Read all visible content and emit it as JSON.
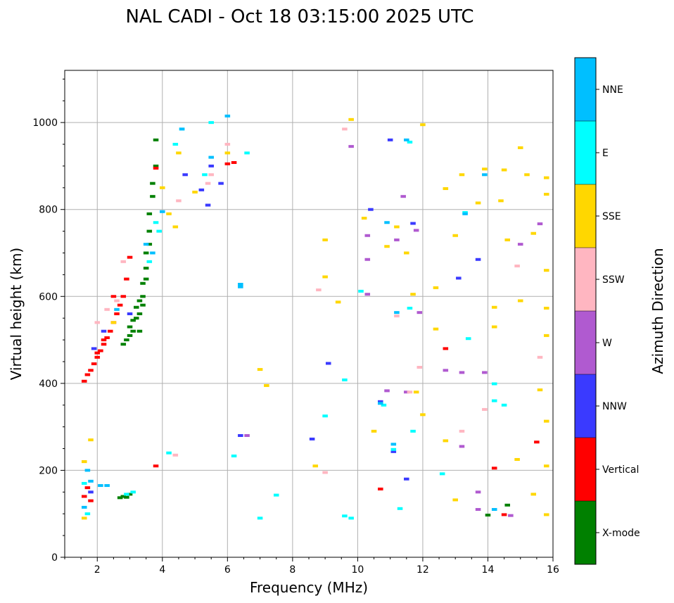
{
  "chart_data": {
    "type": "scatter",
    "title": "NAL CADI - Oct 18 03:15:00 2025 UTC",
    "xlabel": "Frequency (MHz)",
    "ylabel": "Virtual height (km)",
    "xlim": [
      1,
      16
    ],
    "ylim": [
      0,
      1120
    ],
    "xticks": [
      2,
      4,
      6,
      8,
      10,
      12,
      14,
      16
    ],
    "yticks": [
      0,
      200,
      400,
      600,
      800,
      1000
    ],
    "grid": true,
    "colorbar": {
      "label": "Azimuth Direction",
      "categories": [
        {
          "name": "X-mode",
          "color": "#008000"
        },
        {
          "name": "Vertical",
          "color": "#ff0000"
        },
        {
          "name": "NNW",
          "color": "#3a3aff"
        },
        {
          "name": "W",
          "color": "#b05ad0"
        },
        {
          "name": "SSW",
          "color": "#ffb6c1"
        },
        {
          "name": "SSE",
          "color": "#ffd700"
        },
        {
          "name": "E",
          "color": "#00ffff"
        },
        {
          "name": "NNE",
          "color": "#00bfff"
        }
      ]
    },
    "series": [
      {
        "name": "X-mode",
        "points": [
          [
            2.8,
            490
          ],
          [
            2.9,
            500
          ],
          [
            3.0,
            510
          ],
          [
            3.0,
            530
          ],
          [
            3.1,
            520
          ],
          [
            3.1,
            545
          ],
          [
            3.2,
            550
          ],
          [
            3.2,
            575
          ],
          [
            3.3,
            560
          ],
          [
            3.3,
            590
          ],
          [
            3.4,
            600
          ],
          [
            3.4,
            630
          ],
          [
            3.5,
            640
          ],
          [
            3.5,
            665
          ],
          [
            3.5,
            700
          ],
          [
            3.6,
            720
          ],
          [
            3.6,
            750
          ],
          [
            3.6,
            790
          ],
          [
            3.7,
            830
          ],
          [
            3.7,
            860
          ],
          [
            3.8,
            900
          ],
          [
            3.8,
            960
          ],
          [
            2.7,
            137
          ],
          [
            2.8,
            140
          ],
          [
            2.9,
            138
          ],
          [
            3.0,
            145
          ],
          [
            14.0,
            97
          ],
          [
            14.6,
            120
          ],
          [
            3.3,
            520
          ],
          [
            3.4,
            580
          ]
        ]
      },
      {
        "name": "Vertical",
        "points": [
          [
            1.6,
            405
          ],
          [
            1.7,
            420
          ],
          [
            1.8,
            430
          ],
          [
            1.9,
            445
          ],
          [
            2.0,
            460
          ],
          [
            2.1,
            475
          ],
          [
            2.2,
            490
          ],
          [
            2.3,
            505
          ],
          [
            2.4,
            520
          ],
          [
            2.5,
            540
          ],
          [
            2.6,
            560
          ],
          [
            2.7,
            580
          ],
          [
            2.8,
            600
          ],
          [
            2.9,
            640
          ],
          [
            3.0,
            690
          ],
          [
            1.6,
            140
          ],
          [
            1.7,
            160
          ],
          [
            1.8,
            130
          ],
          [
            2.0,
            470
          ],
          [
            2.2,
            500
          ],
          [
            3.8,
            210
          ],
          [
            3.8,
            895
          ],
          [
            6.0,
            905
          ],
          [
            6.2,
            908
          ],
          [
            12.7,
            480
          ],
          [
            14.2,
            205
          ],
          [
            14.5,
            98
          ],
          [
            10.7,
            157
          ],
          [
            15.5,
            265
          ],
          [
            2.5,
            600
          ]
        ]
      },
      {
        "name": "NNW",
        "points": [
          [
            8.6,
            272
          ],
          [
            9.1,
            446
          ],
          [
            10.4,
            800
          ],
          [
            10.7,
            358
          ],
          [
            11.1,
            243
          ],
          [
            11.5,
            180
          ],
          [
            11.7,
            768
          ],
          [
            13.1,
            642
          ],
          [
            13.7,
            685
          ],
          [
            5.8,
            860
          ],
          [
            6.4,
            280
          ],
          [
            11.0,
            960
          ],
          [
            5.2,
            845
          ],
          [
            5.4,
            810
          ],
          [
            4.7,
            880
          ],
          [
            5.5,
            900
          ],
          [
            1.9,
            480
          ],
          [
            2.2,
            520
          ],
          [
            3.0,
            560
          ],
          [
            1.8,
            150
          ]
        ]
      },
      {
        "name": "W",
        "points": [
          [
            9.8,
            945
          ],
          [
            10.3,
            685
          ],
          [
            10.3,
            740
          ],
          [
            11.4,
            830
          ],
          [
            11.8,
            752
          ],
          [
            11.9,
            563
          ],
          [
            13.2,
            425
          ],
          [
            13.9,
            425
          ],
          [
            11.5,
            380
          ],
          [
            14.7,
            96
          ],
          [
            15.6,
            767
          ],
          [
            15.0,
            720
          ],
          [
            12.7,
            430
          ],
          [
            13.2,
            255
          ],
          [
            13.7,
            110
          ],
          [
            10.9,
            383
          ],
          [
            11.2,
            730
          ],
          [
            13.7,
            150
          ],
          [
            6.6,
            280
          ],
          [
            10.3,
            605
          ]
        ]
      },
      {
        "name": "SSW",
        "points": [
          [
            1.6,
            220
          ],
          [
            2.0,
            540
          ],
          [
            2.3,
            570
          ],
          [
            2.6,
            590
          ],
          [
            2.8,
            680
          ],
          [
            4.4,
            235
          ],
          [
            4.5,
            820
          ],
          [
            5.4,
            860
          ],
          [
            5.5,
            880
          ],
          [
            6.0,
            950
          ],
          [
            8.8,
            615
          ],
          [
            9.0,
            195
          ],
          [
            9.6,
            985
          ],
          [
            11.2,
            555
          ],
          [
            11.6,
            380
          ],
          [
            11.9,
            437
          ],
          [
            13.2,
            290
          ],
          [
            13.9,
            340
          ],
          [
            14.9,
            670
          ],
          [
            15.6,
            460
          ]
        ]
      },
      {
        "name": "SSE",
        "points": [
          [
            1.6,
            90
          ],
          [
            1.6,
            220
          ],
          [
            1.8,
            270
          ],
          [
            2.5,
            540
          ],
          [
            4.0,
            850
          ],
          [
            4.2,
            790
          ],
          [
            4.4,
            760
          ],
          [
            4.5,
            930
          ],
          [
            5.0,
            840
          ],
          [
            6.0,
            930
          ],
          [
            7.0,
            432
          ],
          [
            7.2,
            395
          ],
          [
            8.7,
            210
          ],
          [
            9.0,
            730
          ],
          [
            9.0,
            645
          ],
          [
            9.4,
            587
          ],
          [
            9.8,
            1007
          ],
          [
            10.2,
            780
          ],
          [
            10.5,
            290
          ],
          [
            10.9,
            715
          ],
          [
            11.2,
            760
          ],
          [
            11.5,
            700
          ],
          [
            11.7,
            605
          ],
          [
            11.8,
            380
          ],
          [
            12.0,
            995
          ],
          [
            12.4,
            620
          ],
          [
            12.4,
            525
          ],
          [
            12.7,
            848
          ],
          [
            13.0,
            740
          ],
          [
            13.2,
            880
          ],
          [
            13.7,
            815
          ],
          [
            13.9,
            893
          ],
          [
            14.2,
            575
          ],
          [
            14.2,
            530
          ],
          [
            14.4,
            820
          ],
          [
            14.5,
            891
          ],
          [
            14.6,
            730
          ],
          [
            15.0,
            942
          ],
          [
            15.0,
            590
          ],
          [
            15.2,
            880
          ],
          [
            15.4,
            745
          ],
          [
            15.6,
            385
          ],
          [
            15.8,
            873
          ],
          [
            15.8,
            835
          ],
          [
            15.8,
            660
          ],
          [
            15.8,
            573
          ],
          [
            15.8,
            510
          ],
          [
            15.8,
            313
          ],
          [
            15.8,
            210
          ],
          [
            15.8,
            98
          ],
          [
            15.4,
            145
          ],
          [
            14.9,
            225
          ],
          [
            12.7,
            268
          ],
          [
            13.0,
            132
          ],
          [
            12.0,
            328
          ]
        ]
      },
      {
        "name": "E",
        "points": [
          [
            1.6,
            170
          ],
          [
            1.7,
            100
          ],
          [
            2.9,
            145
          ],
          [
            3.1,
            150
          ],
          [
            3.6,
            680
          ],
          [
            3.8,
            770
          ],
          [
            3.9,
            750
          ],
          [
            4.2,
            240
          ],
          [
            4.4,
            950
          ],
          [
            4.6,
            985
          ],
          [
            5.3,
            880
          ],
          [
            5.5,
            1000
          ],
          [
            6.6,
            930
          ],
          [
            7.5,
            143
          ],
          [
            9.6,
            95
          ],
          [
            9.8,
            90
          ],
          [
            9.6,
            408
          ],
          [
            10.1,
            612
          ],
          [
            11.1,
            248
          ],
          [
            11.6,
            573
          ],
          [
            11.7,
            290
          ],
          [
            12.6,
            192
          ],
          [
            13.4,
            503
          ],
          [
            14.2,
            360
          ],
          [
            14.5,
            350
          ],
          [
            14.2,
            399
          ],
          [
            13.3,
            793
          ],
          [
            10.8,
            350
          ],
          [
            11.3,
            112
          ],
          [
            11.6,
            955
          ],
          [
            7.0,
            90
          ],
          [
            6.2,
            233
          ],
          [
            9.0,
            325
          ]
        ]
      },
      {
        "name": "NNE",
        "points": [
          [
            1.6,
            115
          ],
          [
            1.7,
            200
          ],
          [
            1.8,
            175
          ],
          [
            2.1,
            165
          ],
          [
            2.3,
            165
          ],
          [
            3.5,
            720
          ],
          [
            3.7,
            700
          ],
          [
            4.0,
            795
          ],
          [
            4.6,
            985
          ],
          [
            5.5,
            920
          ],
          [
            6.0,
            1015
          ],
          [
            6.4,
            628
          ],
          [
            6.4,
            622
          ],
          [
            10.7,
            354
          ],
          [
            10.9,
            770
          ],
          [
            11.2,
            563
          ],
          [
            11.5,
            960
          ],
          [
            13.3,
            790
          ],
          [
            13.9,
            880
          ],
          [
            14.2,
            110
          ],
          [
            11.1,
            260
          ],
          [
            2.6,
            570
          ]
        ]
      }
    ]
  }
}
